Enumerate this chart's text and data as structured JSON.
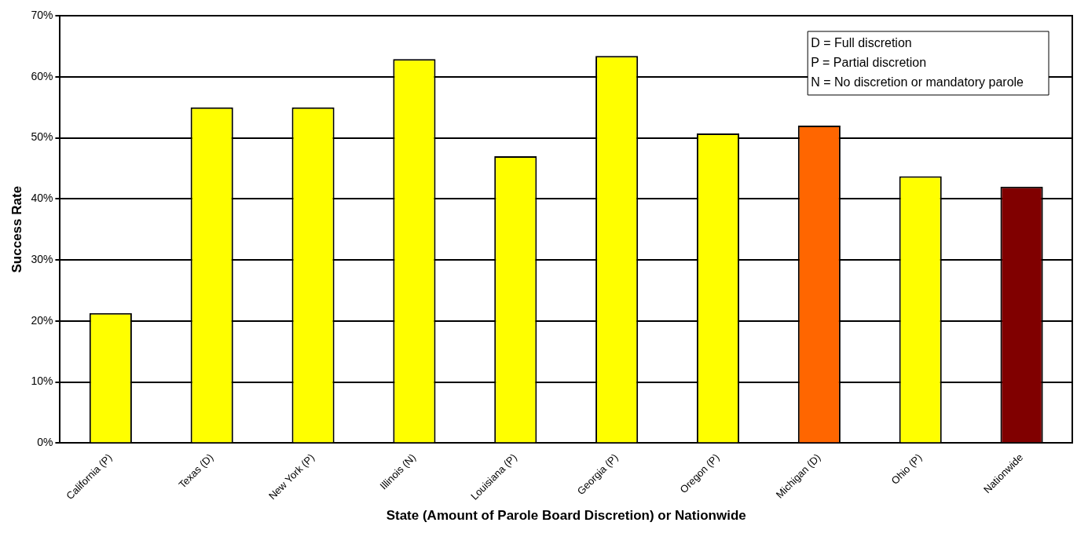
{
  "chart_data": {
    "type": "bar",
    "xlabel": "State (Amount of Parole Board Discretion) or Nationwide",
    "ylabel": "Success Rate",
    "categories": [
      "California (P)",
      "Texas (D)",
      "New York (P)",
      "Illinois (N)",
      "Louisiana (P)",
      "Georgia (P)",
      "Oregon (P)",
      "Michigan (D)",
      "Ohio (P)",
      "Nationwide"
    ],
    "values": [
      21.3,
      55,
      55,
      62.9,
      47,
      63.4,
      50.7,
      52,
      43.7,
      42
    ],
    "colors": [
      "#ffff00",
      "#ffff00",
      "#ffff00",
      "#ffff00",
      "#ffff00",
      "#ffff00",
      "#ffff00",
      "#ff6600",
      "#ffff00",
      "#800000"
    ],
    "ylim": [
      0,
      70
    ],
    "yticks": [
      {
        "value": 0,
        "label": "0%"
      },
      {
        "value": 10,
        "label": "10%"
      },
      {
        "value": 20,
        "label": "20%"
      },
      {
        "value": 30,
        "label": "30%"
      },
      {
        "value": 40,
        "label": "40%"
      },
      {
        "value": 50,
        "label": "50%"
      },
      {
        "value": 60,
        "label": "60%"
      },
      {
        "value": 70,
        "label": "70%"
      }
    ],
    "grid": "y",
    "annotations": [
      "D = Full discretion",
      "P = Partial discretion",
      "N = No discretion or mandatory parole"
    ]
  }
}
